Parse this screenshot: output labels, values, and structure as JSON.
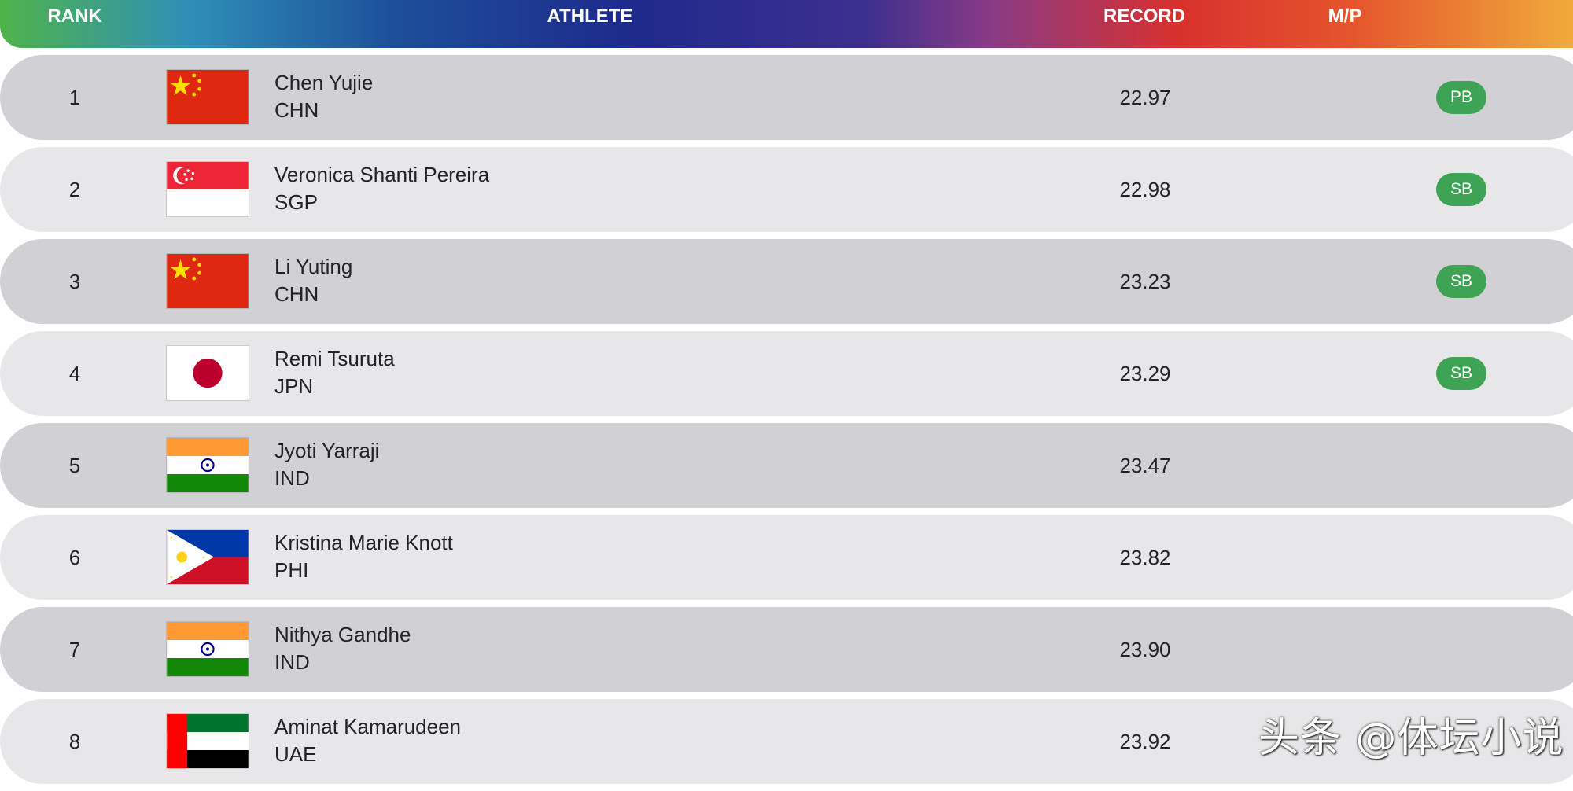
{
  "header": {
    "rank": "RANK",
    "athlete": "ATHLETE",
    "record": "RECORD",
    "mp": "M/P"
  },
  "rows": [
    {
      "rank": "1",
      "name": "Chen Yujie",
      "country": "CHN",
      "flag": "china-flag",
      "record": "22.97",
      "badge": "PB"
    },
    {
      "rank": "2",
      "name": "Veronica Shanti Pereira",
      "country": "SGP",
      "flag": "singapore-flag",
      "record": "22.98",
      "badge": "SB"
    },
    {
      "rank": "3",
      "name": "Li Yuting",
      "country": "CHN",
      "flag": "china-flag",
      "record": "23.23",
      "badge": "SB"
    },
    {
      "rank": "4",
      "name": "Remi Tsuruta",
      "country": "JPN",
      "flag": "japan-flag",
      "record": "23.29",
      "badge": "SB"
    },
    {
      "rank": "5",
      "name": "Jyoti Yarraji",
      "country": "IND",
      "flag": "india-flag",
      "record": "23.47",
      "badge": ""
    },
    {
      "rank": "6",
      "name": "Kristina Marie Knott",
      "country": "PHI",
      "flag": "philippines-flag",
      "record": "23.82",
      "badge": ""
    },
    {
      "rank": "7",
      "name": "Nithya Gandhe",
      "country": "IND",
      "flag": "india-flag",
      "record": "23.90",
      "badge": ""
    },
    {
      "rank": "8",
      "name": "Aminat Kamarudeen",
      "country": "UAE",
      "flag": "uae-flag",
      "record": "23.92",
      "badge": ""
    }
  ],
  "watermark": "头条 @体坛小说",
  "colors": {
    "badge_green": "#3fa355",
    "row_dark": "#d1d0d5",
    "row_light": "#e7e7e9"
  }
}
